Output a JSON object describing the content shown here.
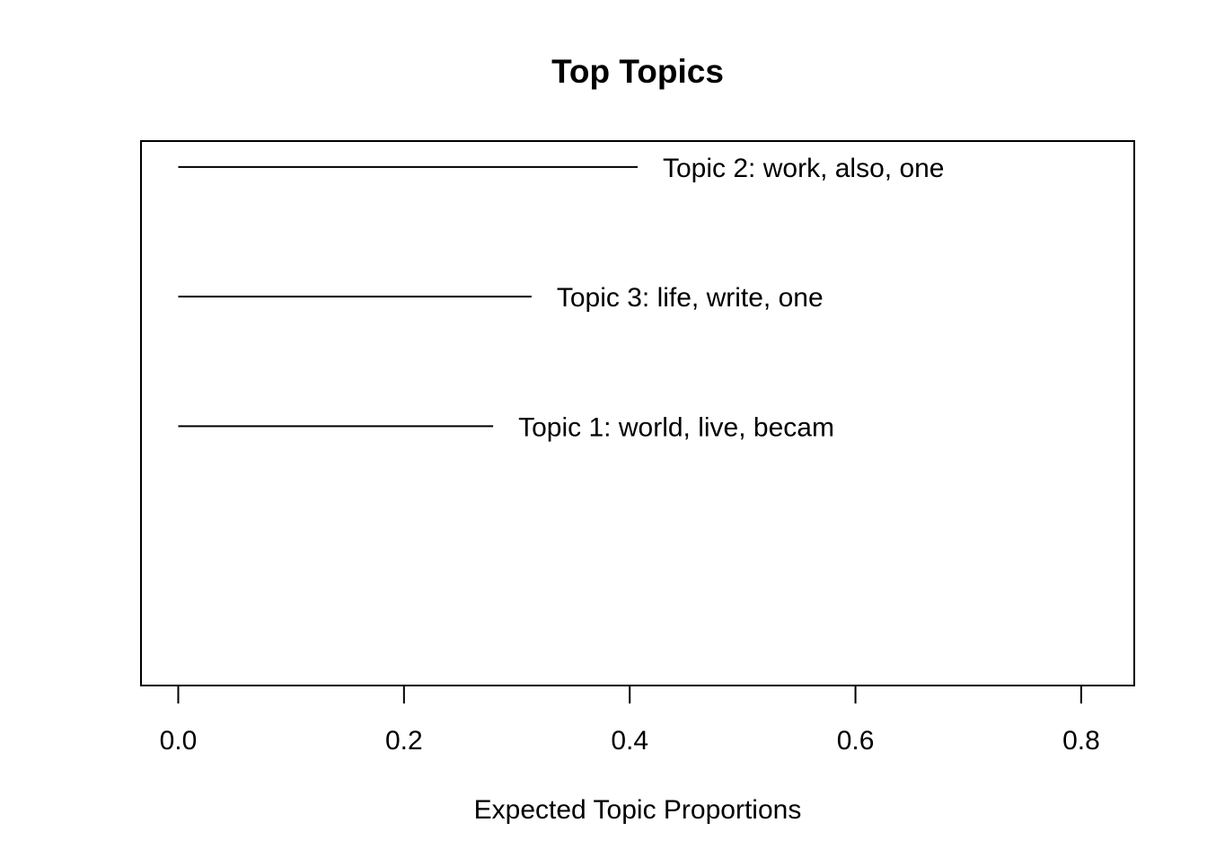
{
  "chart_data": {
    "type": "bar",
    "orientation": "horizontal",
    "title": "Top Topics",
    "xlabel": "Expected Topic Proportions",
    "ylabel": "",
    "xlim": [
      -0.033,
      0.847
    ],
    "x_ticks": [
      0.0,
      0.2,
      0.4,
      0.6,
      0.8
    ],
    "x_tick_labels": [
      "0.0",
      "0.2",
      "0.4",
      "0.6",
      "0.8"
    ],
    "y_positions_range": [
      0,
      4.2
    ],
    "grid": false,
    "legend": "none",
    "bars": [
      {
        "label": "Topic 2: work, also, one",
        "value": 0.407,
        "position": 4
      },
      {
        "label": "Topic 3: life, write, one",
        "value": 0.313,
        "position": 3
      },
      {
        "label": "Topic 1: world, live, becam",
        "value": 0.279,
        "position": 2
      }
    ],
    "line_color": "#000000"
  }
}
